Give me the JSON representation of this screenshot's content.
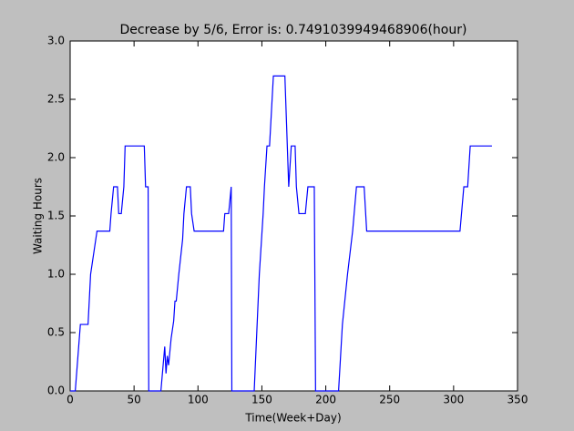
{
  "chart_data": {
    "type": "line",
    "title": "Decrease by 5/6, Error is: 0.7491039949468906(hour)",
    "x_label": "Time(Week+Day)",
    "y_label": "Waiting Hours",
    "x": [
      0,
      4,
      8,
      14,
      16,
      21,
      31,
      32,
      34,
      37,
      38,
      40,
      42,
      43,
      58,
      59,
      61,
      61.5,
      71,
      74,
      75,
      76,
      77,
      79,
      81,
      82,
      83,
      85,
      88,
      89,
      91,
      94,
      95,
      97,
      120,
      121,
      124,
      126,
      126.5,
      144,
      146,
      148,
      151,
      152,
      154,
      156,
      159,
      168,
      171,
      173,
      176,
      177,
      179,
      184,
      186,
      191,
      192,
      210,
      213,
      217,
      221,
      224,
      230,
      232,
      305,
      308,
      311,
      313,
      330
    ],
    "series": [
      {
        "name": "waiting",
        "color": "#0000ff",
        "values": [
          0,
          0,
          0.57,
          0.57,
          1.0,
          1.37,
          1.37,
          1.52,
          1.75,
          1.75,
          1.52,
          1.52,
          1.75,
          2.1,
          2.1,
          1.75,
          1.75,
          0,
          0,
          0.38,
          0.15,
          0.3,
          0.22,
          0.45,
          0.6,
          0.77,
          0.77,
          1.0,
          1.3,
          1.52,
          1.75,
          1.75,
          1.52,
          1.37,
          1.37,
          1.52,
          1.52,
          1.75,
          0,
          0,
          0.5,
          1.0,
          1.52,
          1.75,
          2.1,
          2.1,
          2.7,
          2.7,
          1.75,
          2.1,
          2.1,
          1.75,
          1.52,
          1.52,
          1.75,
          1.75,
          0,
          0,
          0.57,
          1.0,
          1.37,
          1.75,
          1.75,
          1.37,
          1.37,
          1.75,
          1.75,
          2.1,
          2.1
        ]
      }
    ],
    "xlim": [
      0,
      350
    ],
    "xticks": [
      0,
      50,
      100,
      150,
      200,
      250,
      300,
      350
    ],
    "ylim": [
      0,
      3.0
    ],
    "yticks": [
      {
        "value": 0,
        "label": "0.0"
      },
      {
        "value": 0.5,
        "label": "0.5"
      },
      {
        "value": 1.0,
        "label": "1.0"
      },
      {
        "value": 1.5,
        "label": "1.5"
      },
      {
        "value": 2.0,
        "label": "2.0"
      },
      {
        "value": 2.5,
        "label": "2.5"
      },
      {
        "value": 3.0,
        "label": "3.0"
      }
    ]
  }
}
